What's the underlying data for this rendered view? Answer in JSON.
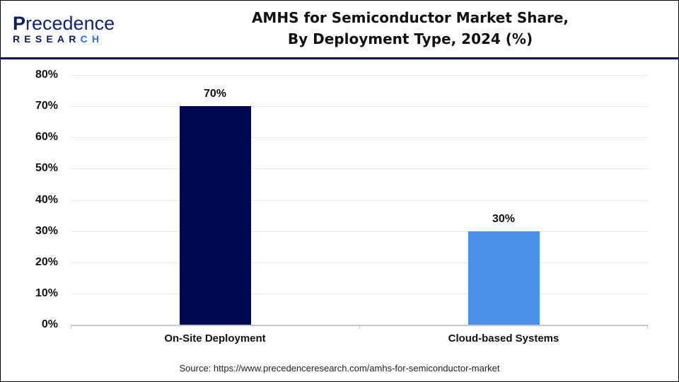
{
  "logo": {
    "line1_first": "P",
    "line1_rest": "recedence",
    "line2_main": "RESEAR",
    "line2_accent": "CH"
  },
  "title": {
    "line1": "AMHS for Semiconductor Market Share,",
    "line2": "By Deployment Type, 2024 (%)"
  },
  "colors": {
    "on_site": "#02084f",
    "cloud": "#4a90e8",
    "divider": "#0a0a4a"
  },
  "axis": {
    "y_ticks": [
      "0%",
      "10%",
      "20%",
      "30%",
      "40%",
      "50%",
      "60%",
      "70%",
      "80%"
    ]
  },
  "bars": [
    {
      "label": "On-Site Deployment",
      "value": 70,
      "value_label": "70%"
    },
    {
      "label": "Cloud-based Systems",
      "value": 30,
      "value_label": "30%"
    }
  ],
  "source": "Source: https://www.precedenceresearch.com/amhs-for-semiconductor-market",
  "chart_data": {
    "type": "bar",
    "title": "AMHS for Semiconductor Market Share, By Deployment Type, 2024 (%)",
    "categories": [
      "On-Site Deployment",
      "Cloud-based Systems"
    ],
    "values": [
      70,
      30
    ],
    "xlabel": "",
    "ylabel": "",
    "ylim": [
      0,
      80
    ],
    "y_tick_step": 10,
    "grid": true,
    "legend": "none",
    "data_labels": [
      "70%",
      "30%"
    ],
    "series_colors": [
      "#02084f",
      "#4a90e8"
    ]
  }
}
